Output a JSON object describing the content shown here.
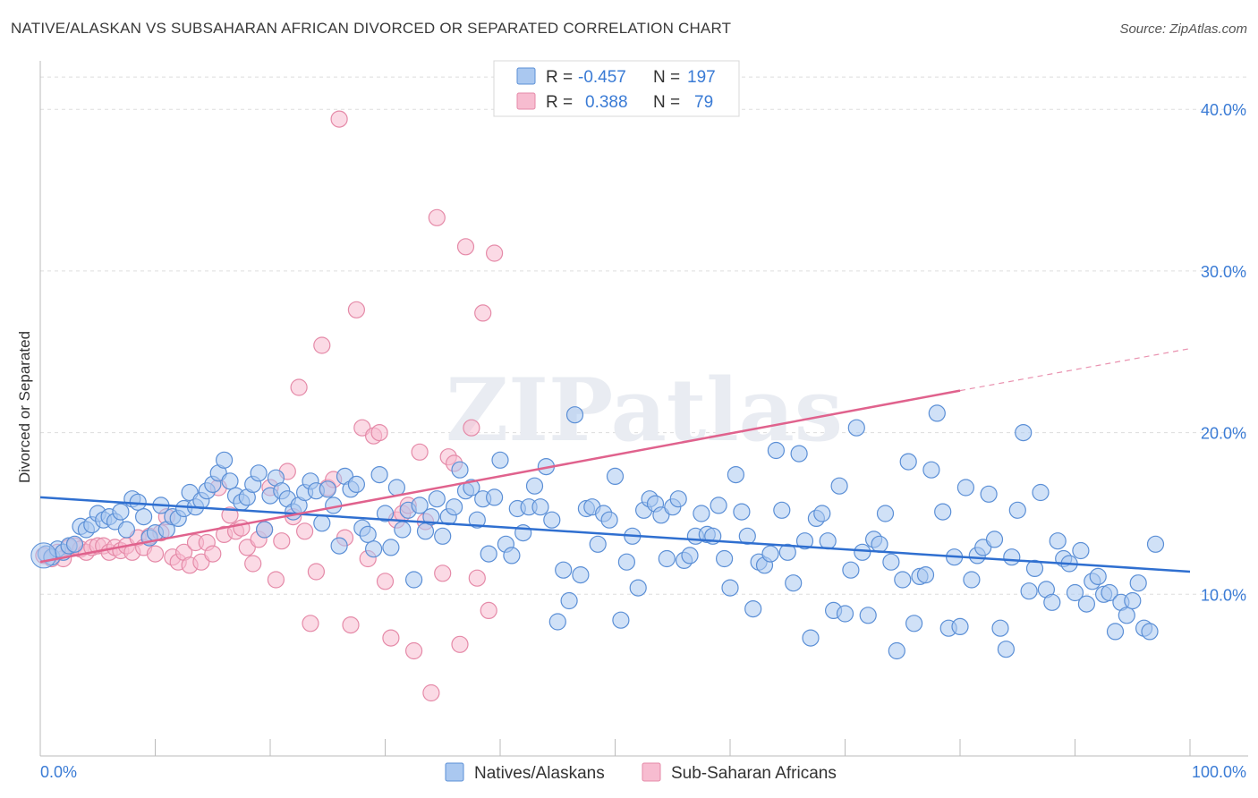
{
  "title": "NATIVE/ALASKAN VS SUBSAHARAN AFRICAN DIVORCED OR SEPARATED CORRELATION CHART",
  "source": "Source: ZipAtlas.com",
  "watermark": "ZIPatlas",
  "colors": {
    "blue_fill": "#aac8f0",
    "blue_stroke": "#5b8fd6",
    "blue_line": "#2f6fd0",
    "pink_fill": "#f7bcd0",
    "pink_stroke": "#e58aa8",
    "pink_line": "#e0628d",
    "axis_text": "#3a7bd5",
    "grid": "#dddddd"
  },
  "legend": {
    "rows": [
      {
        "r_label": "R =",
        "r_value": "-0.457",
        "n_label": "N =",
        "n_value": "197"
      },
      {
        "r_label": "R =",
        "r_value": "0.388",
        "n_label": "N =",
        "n_value": "79"
      }
    ]
  },
  "bottom_legend": [
    "Natives/Alaskans",
    "Sub-Saharan Africans"
  ],
  "chart_data": {
    "type": "scatter",
    "title": "NATIVE/ALASKAN VS SUBSAHARAN AFRICAN DIVORCED OR SEPARATED CORRELATION CHART",
    "xlabel": "",
    "ylabel": "Divorced or Separated",
    "xlim": [
      0,
      100
    ],
    "ylim": [
      0,
      43
    ],
    "x_tick_labels": [
      "0.0%",
      "100.0%"
    ],
    "y_ticks": [
      10,
      20,
      30,
      40
    ],
    "y_tick_labels": [
      "10.0%",
      "20.0%",
      "30.0%",
      "40.0%"
    ],
    "grid": true,
    "legend_position": "top-center",
    "series": [
      {
        "name": "Natives/Alaskans",
        "r": -0.457,
        "n": 197,
        "trend": {
          "x0": 0,
          "y0": 16.0,
          "x1": 100,
          "y1": 11.4
        },
        "points": [
          [
            0.5,
            12.5
          ],
          [
            1.0,
            12.3
          ],
          [
            1.5,
            12.8
          ],
          [
            2.0,
            12.6
          ],
          [
            2.5,
            13.0
          ],
          [
            3.0,
            13.1
          ],
          [
            3.5,
            14.2
          ],
          [
            4.0,
            14.0
          ],
          [
            4.5,
            14.3
          ],
          [
            5.0,
            15.0
          ],
          [
            5.5,
            14.6
          ],
          [
            6.0,
            14.8
          ],
          [
            6.5,
            14.5
          ],
          [
            7.0,
            15.1
          ],
          [
            7.5,
            14.0
          ],
          [
            8.0,
            15.9
          ],
          [
            8.5,
            15.7
          ],
          [
            9.0,
            14.8
          ],
          [
            9.5,
            13.5
          ],
          [
            10.0,
            13.8
          ],
          [
            10.5,
            15.5
          ],
          [
            11.0,
            14.0
          ],
          [
            11.5,
            14.8
          ],
          [
            12.0,
            14.7
          ],
          [
            12.5,
            15.3
          ],
          [
            13.0,
            16.3
          ],
          [
            13.5,
            15.4
          ],
          [
            14.0,
            15.8
          ],
          [
            14.5,
            16.4
          ],
          [
            15.0,
            16.8
          ],
          [
            15.5,
            17.5
          ],
          [
            16.0,
            18.3
          ],
          [
            16.5,
            17.0
          ],
          [
            17.0,
            16.1
          ],
          [
            17.5,
            15.7
          ],
          [
            18.0,
            16.0
          ],
          [
            18.5,
            16.8
          ],
          [
            19.0,
            17.5
          ],
          [
            19.5,
            14.0
          ],
          [
            20.0,
            16.1
          ],
          [
            20.5,
            17.2
          ],
          [
            21.0,
            16.4
          ],
          [
            21.5,
            15.9
          ],
          [
            22.0,
            15.1
          ],
          [
            22.5,
            15.5
          ],
          [
            23.0,
            16.3
          ],
          [
            23.5,
            17.0
          ],
          [
            24.0,
            16.4
          ],
          [
            24.5,
            14.4
          ],
          [
            25.0,
            16.5
          ],
          [
            25.5,
            15.5
          ],
          [
            26.0,
            13.0
          ],
          [
            26.5,
            17.3
          ],
          [
            27.0,
            16.5
          ],
          [
            27.5,
            16.8
          ],
          [
            28.0,
            14.1
          ],
          [
            28.5,
            13.7
          ],
          [
            29.0,
            12.8
          ],
          [
            29.5,
            17.4
          ],
          [
            30.0,
            15.0
          ],
          [
            30.5,
            12.9
          ],
          [
            31.0,
            16.6
          ],
          [
            31.5,
            14.0
          ],
          [
            32.0,
            15.2
          ],
          [
            32.5,
            10.9
          ],
          [
            33.0,
            15.5
          ],
          [
            33.5,
            13.9
          ],
          [
            34.0,
            14.8
          ],
          [
            34.5,
            15.9
          ],
          [
            35.0,
            13.6
          ],
          [
            35.5,
            14.8
          ],
          [
            36.0,
            15.4
          ],
          [
            36.5,
            17.7
          ],
          [
            37.0,
            16.4
          ],
          [
            37.5,
            16.6
          ],
          [
            38.0,
            14.6
          ],
          [
            38.5,
            15.9
          ],
          [
            39.0,
            12.5
          ],
          [
            39.5,
            16.0
          ],
          [
            40.0,
            18.3
          ],
          [
            40.5,
            13.1
          ],
          [
            41.0,
            12.4
          ],
          [
            41.5,
            15.3
          ],
          [
            42.0,
            13.8
          ],
          [
            42.5,
            15.4
          ],
          [
            43.0,
            16.7
          ],
          [
            43.5,
            15.4
          ],
          [
            44.0,
            17.9
          ],
          [
            44.5,
            14.6
          ],
          [
            45.0,
            8.3
          ],
          [
            45.5,
            11.5
          ],
          [
            46.0,
            9.6
          ],
          [
            46.5,
            21.1
          ],
          [
            47.0,
            11.2
          ],
          [
            47.5,
            15.3
          ],
          [
            48.0,
            15.4
          ],
          [
            48.5,
            13.1
          ],
          [
            49.0,
            15.0
          ],
          [
            49.5,
            14.6
          ],
          [
            50.0,
            17.3
          ],
          [
            50.5,
            8.4
          ],
          [
            51.0,
            12.0
          ],
          [
            51.5,
            13.6
          ],
          [
            52.0,
            10.4
          ],
          [
            52.5,
            15.2
          ],
          [
            53.0,
            15.9
          ],
          [
            53.5,
            15.6
          ],
          [
            54.0,
            14.9
          ],
          [
            54.5,
            12.2
          ],
          [
            55.0,
            15.4
          ],
          [
            55.5,
            15.9
          ],
          [
            56.0,
            12.1
          ],
          [
            56.5,
            12.4
          ],
          [
            57.0,
            13.6
          ],
          [
            57.5,
            15.0
          ],
          [
            58.0,
            13.7
          ],
          [
            58.5,
            13.6
          ],
          [
            59.0,
            15.5
          ],
          [
            59.5,
            12.2
          ],
          [
            60.0,
            10.4
          ],
          [
            60.5,
            17.4
          ],
          [
            61.0,
            15.1
          ],
          [
            61.5,
            13.6
          ],
          [
            62.0,
            9.1
          ],
          [
            62.5,
            12.0
          ],
          [
            63.0,
            11.8
          ],
          [
            63.5,
            12.5
          ],
          [
            64.0,
            18.9
          ],
          [
            64.5,
            15.2
          ],
          [
            65.0,
            12.6
          ],
          [
            65.5,
            10.7
          ],
          [
            66.0,
            18.7
          ],
          [
            66.5,
            13.3
          ],
          [
            67.0,
            7.3
          ],
          [
            67.5,
            14.7
          ],
          [
            68.0,
            15.0
          ],
          [
            68.5,
            13.3
          ],
          [
            69.0,
            9.0
          ],
          [
            69.5,
            16.7
          ],
          [
            70.0,
            8.8
          ],
          [
            70.5,
            11.5
          ],
          [
            71.0,
            20.3
          ],
          [
            71.5,
            12.6
          ],
          [
            72.0,
            8.7
          ],
          [
            72.5,
            13.4
          ],
          [
            73.0,
            13.1
          ],
          [
            73.5,
            15.0
          ],
          [
            74.0,
            12.0
          ],
          [
            74.5,
            6.5
          ],
          [
            75.0,
            10.9
          ],
          [
            75.5,
            18.2
          ],
          [
            76.0,
            8.2
          ],
          [
            76.5,
            11.1
          ],
          [
            77.0,
            11.2
          ],
          [
            77.5,
            17.7
          ],
          [
            78.0,
            21.2
          ],
          [
            78.5,
            15.1
          ],
          [
            79.0,
            7.9
          ],
          [
            79.5,
            12.3
          ],
          [
            80.0,
            8.0
          ],
          [
            80.5,
            16.6
          ],
          [
            81.0,
            10.9
          ],
          [
            81.5,
            12.4
          ],
          [
            82.0,
            12.9
          ],
          [
            82.5,
            16.2
          ],
          [
            83.0,
            13.4
          ],
          [
            83.5,
            7.9
          ],
          [
            84.0,
            6.6
          ],
          [
            84.5,
            12.3
          ],
          [
            85.0,
            15.2
          ],
          [
            85.5,
            20.0
          ],
          [
            86.0,
            10.2
          ],
          [
            86.5,
            11.6
          ],
          [
            87.0,
            16.3
          ],
          [
            87.5,
            10.3
          ],
          [
            88.0,
            9.5
          ],
          [
            88.5,
            13.3
          ],
          [
            89.0,
            12.2
          ],
          [
            89.5,
            11.9
          ],
          [
            90.0,
            10.1
          ],
          [
            90.5,
            12.7
          ],
          [
            91.0,
            9.4
          ],
          [
            91.5,
            10.8
          ],
          [
            92.0,
            11.1
          ],
          [
            92.5,
            10.0
          ],
          [
            93.0,
            10.1
          ],
          [
            93.5,
            7.7
          ],
          [
            94.0,
            9.5
          ],
          [
            94.5,
            8.7
          ],
          [
            95.0,
            9.6
          ],
          [
            95.5,
            10.7
          ],
          [
            96.0,
            7.9
          ],
          [
            96.5,
            7.7
          ],
          [
            97.0,
            13.1
          ]
        ]
      },
      {
        "name": "Sub-Saharan Africans",
        "r": 0.388,
        "n": 79,
        "trend": {
          "x0": 0,
          "y0": 12.0,
          "x1": 80,
          "y1": 22.6,
          "dash_to_x": 100,
          "dash_to_y": 25.2
        },
        "points": [
          [
            0.3,
            12.4
          ],
          [
            1.0,
            12.2
          ],
          [
            1.5,
            12.6
          ],
          [
            2.0,
            12.2
          ],
          [
            2.5,
            12.9
          ],
          [
            3.0,
            13.0
          ],
          [
            3.5,
            12.8
          ],
          [
            4.0,
            12.6
          ],
          [
            4.5,
            12.9
          ],
          [
            5.0,
            13.0
          ],
          [
            5.5,
            13.0
          ],
          [
            6.0,
            12.6
          ],
          [
            6.5,
            12.9
          ],
          [
            7.0,
            12.7
          ],
          [
            7.5,
            13.0
          ],
          [
            8.0,
            12.6
          ],
          [
            8.5,
            13.5
          ],
          [
            9.0,
            12.9
          ],
          [
            9.5,
            13.6
          ],
          [
            10.0,
            12.5
          ],
          [
            10.5,
            13.8
          ],
          [
            11.0,
            14.8
          ],
          [
            11.5,
            12.3
          ],
          [
            12.0,
            12.0
          ],
          [
            12.5,
            12.6
          ],
          [
            13.0,
            11.8
          ],
          [
            13.5,
            13.2
          ],
          [
            14.0,
            12.0
          ],
          [
            14.5,
            13.2
          ],
          [
            15.0,
            12.5
          ],
          [
            15.5,
            16.6
          ],
          [
            16.0,
            13.7
          ],
          [
            16.5,
            14.9
          ],
          [
            17.0,
            13.9
          ],
          [
            17.5,
            14.1
          ],
          [
            18.0,
            12.9
          ],
          [
            18.5,
            11.9
          ],
          [
            19.0,
            13.4
          ],
          [
            19.5,
            14.0
          ],
          [
            20.0,
            16.6
          ],
          [
            20.5,
            10.9
          ],
          [
            21.0,
            13.3
          ],
          [
            21.5,
            17.6
          ],
          [
            22.0,
            14.8
          ],
          [
            22.5,
            22.8
          ],
          [
            23.0,
            13.9
          ],
          [
            23.5,
            8.2
          ],
          [
            24.0,
            11.4
          ],
          [
            24.5,
            25.4
          ],
          [
            25.0,
            16.6
          ],
          [
            25.5,
            17.1
          ],
          [
            26.0,
            39.4
          ],
          [
            26.5,
            13.5
          ],
          [
            27.0,
            8.1
          ],
          [
            27.5,
            27.6
          ],
          [
            28.0,
            20.3
          ],
          [
            28.5,
            12.2
          ],
          [
            29.0,
            19.8
          ],
          [
            29.5,
            20.0
          ],
          [
            30.0,
            10.8
          ],
          [
            30.5,
            7.3
          ],
          [
            31.0,
            14.6
          ],
          [
            31.5,
            15.0
          ],
          [
            32.0,
            15.5
          ],
          [
            32.5,
            6.5
          ],
          [
            33.0,
            18.8
          ],
          [
            33.5,
            14.5
          ],
          [
            34.0,
            3.9
          ],
          [
            34.5,
            33.3
          ],
          [
            35.0,
            11.3
          ],
          [
            35.5,
            18.5
          ],
          [
            36.0,
            18.1
          ],
          [
            36.5,
            6.9
          ],
          [
            37.0,
            31.5
          ],
          [
            37.5,
            20.3
          ],
          [
            38.0,
            11.0
          ],
          [
            38.5,
            27.4
          ],
          [
            39.0,
            9.0
          ],
          [
            39.5,
            31.1
          ]
        ]
      }
    ]
  }
}
